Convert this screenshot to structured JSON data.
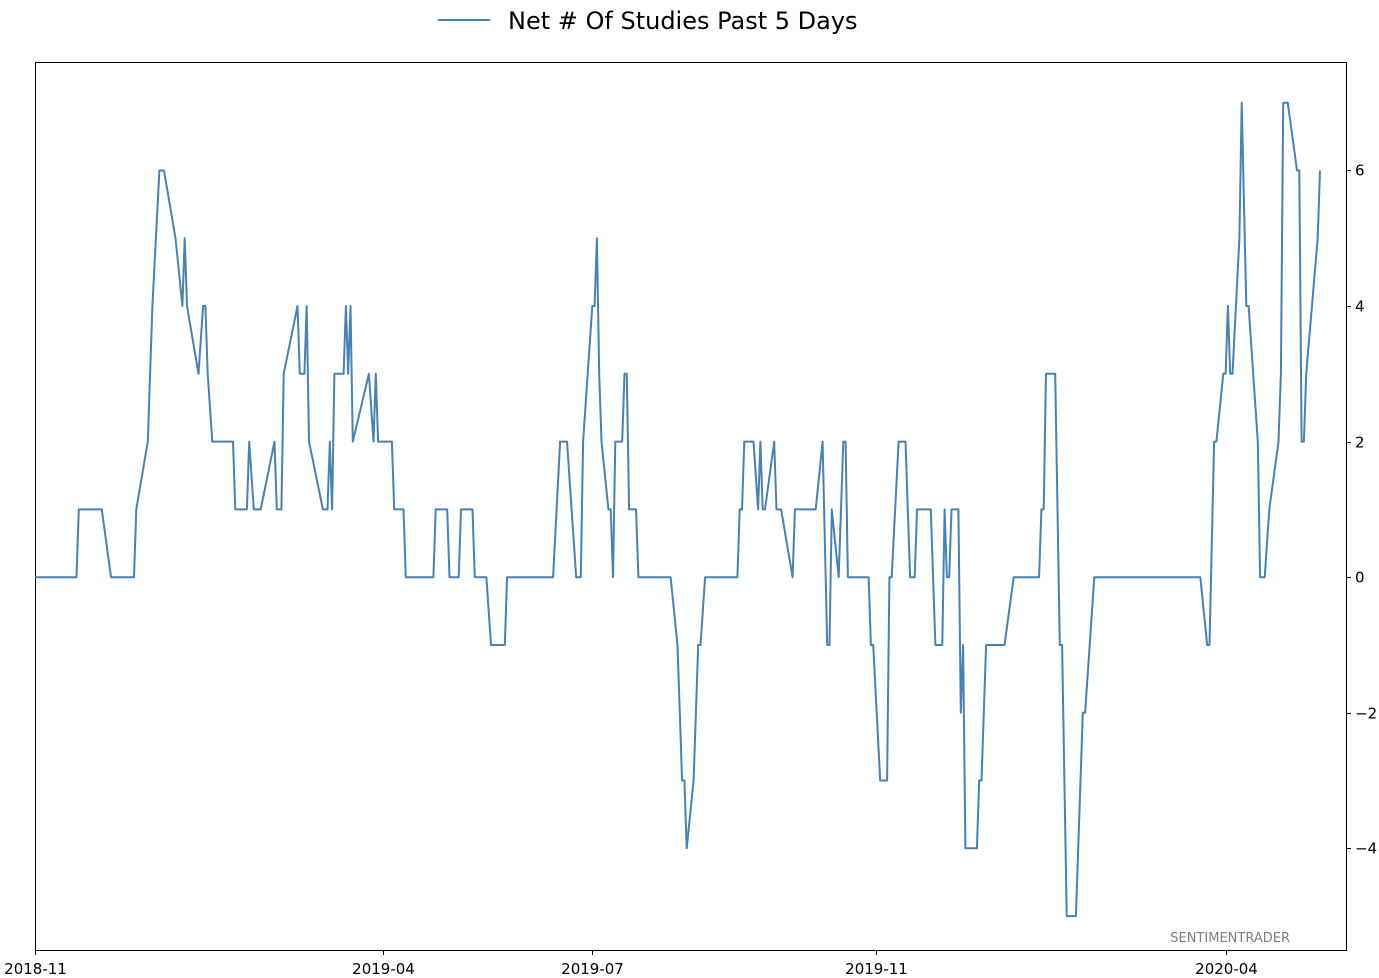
{
  "chart_data": {
    "type": "line",
    "title": "",
    "xlabel": "",
    "ylabel": "",
    "legend": {
      "placement": "top-center",
      "entries": [
        "Net # Of Studies Past 5 Days"
      ]
    },
    "watermark": "SENTIMENTRADER",
    "x_ticks": [
      "2018-11",
      "2019-04",
      "2019-07",
      "2019-11",
      "2020-04"
    ],
    "y_ticks": [
      -4,
      -2,
      0,
      2,
      4,
      6
    ],
    "ylim": [
      -5.5,
      7.6
    ],
    "grid": false,
    "y_axis_side": "right",
    "colors": {
      "series": "#4682b4",
      "axes": "#000000",
      "watermark": "#808080"
    },
    "series": [
      {
        "name": "Net # Of Studies Past 5 Days",
        "points": [
          [
            "2018-11",
            0
          ],
          [
            "2018-11-19",
            0
          ],
          [
            "2018-11-20",
            1
          ],
          [
            "2018-11-30",
            1
          ],
          [
            "2018-12-04",
            0
          ],
          [
            "2018-12-14",
            0
          ],
          [
            "2018-12-15",
            1
          ],
          [
            "2018-12-20",
            2
          ],
          [
            "2018-12-22",
            4
          ],
          [
            "2018-12-25",
            6
          ],
          [
            "2018-12-27",
            6
          ],
          [
            "2019-01-01",
            5
          ],
          [
            "2019-01-04",
            4
          ],
          [
            "2019-01-05",
            5
          ],
          [
            "2019-01-06",
            4
          ],
          [
            "2019-01-11",
            3
          ],
          [
            "2019-01-13",
            4
          ],
          [
            "2019-01-14",
            4
          ],
          [
            "2019-01-15",
            3
          ],
          [
            "2019-01-17",
            2
          ],
          [
            "2019-01-26",
            2
          ],
          [
            "2019-01-27",
            1
          ],
          [
            "2019-02-01",
            1
          ],
          [
            "2019-02-02",
            2
          ],
          [
            "2019-02-04",
            1
          ],
          [
            "2019-02-07",
            1
          ],
          [
            "2019-02-13",
            2
          ],
          [
            "2019-02-14",
            1
          ],
          [
            "2019-02-16",
            1
          ],
          [
            "2019-02-17",
            3
          ],
          [
            "2019-02-23",
            4
          ],
          [
            "2019-02-24",
            3
          ],
          [
            "2019-02-26",
            3
          ],
          [
            "2019-02-27",
            4
          ],
          [
            "2019-02-28",
            2
          ],
          [
            "2019-03-06",
            1
          ],
          [
            "2019-03-08",
            1
          ],
          [
            "2019-03-09",
            2
          ],
          [
            "2019-03-10",
            1
          ],
          [
            "2019-03-11",
            3
          ],
          [
            "2019-03-15",
            3
          ],
          [
            "2019-03-16",
            4
          ],
          [
            "2019-03-17",
            3
          ],
          [
            "2019-03-18",
            4
          ],
          [
            "2019-03-19",
            2
          ],
          [
            "2019-03-26",
            3
          ],
          [
            "2019-03-28",
            2
          ],
          [
            "2019-03-29",
            3
          ],
          [
            "2019-03-30",
            2
          ],
          [
            "2019-04-05",
            2
          ],
          [
            "2019-04-06",
            1
          ],
          [
            "2019-04-10",
            1
          ],
          [
            "2019-04-11",
            0
          ],
          [
            "2019-04-23",
            0
          ],
          [
            "2019-04-24",
            1
          ],
          [
            "2019-04-29",
            1
          ],
          [
            "2019-04-30",
            0
          ],
          [
            "2019-05-04",
            0
          ],
          [
            "2019-05-05",
            1
          ],
          [
            "2019-05-10",
            1
          ],
          [
            "2019-05-11",
            0
          ],
          [
            "2019-05-16",
            0
          ],
          [
            "2019-05-18",
            -1
          ],
          [
            "2019-05-24",
            -1
          ],
          [
            "2019-05-25",
            0
          ],
          [
            "2019-06-14",
            0
          ],
          [
            "2019-06-17",
            2
          ],
          [
            "2019-06-20",
            2
          ],
          [
            "2019-06-24",
            0
          ],
          [
            "2019-06-26",
            0
          ],
          [
            "2019-06-27",
            2
          ],
          [
            "2019-06-29",
            3
          ],
          [
            "2019-07-01",
            4
          ],
          [
            "2019-07-02",
            4
          ],
          [
            "2019-07-03",
            5
          ],
          [
            "2019-07-04",
            3
          ],
          [
            "2019-07-05",
            2
          ],
          [
            "2019-07-08",
            1
          ],
          [
            "2019-07-09",
            1
          ],
          [
            "2019-07-10",
            0
          ],
          [
            "2019-07-11",
            2
          ],
          [
            "2019-07-14",
            2
          ],
          [
            "2019-07-15",
            3
          ],
          [
            "2019-07-16",
            3
          ],
          [
            "2019-07-17",
            1
          ],
          [
            "2019-07-20",
            1
          ],
          [
            "2019-07-21",
            0
          ],
          [
            "2019-08-04",
            0
          ],
          [
            "2019-08-07",
            -1
          ],
          [
            "2019-08-09",
            -3
          ],
          [
            "2019-08-10",
            -3
          ],
          [
            "2019-08-11",
            -4
          ],
          [
            "2019-08-14",
            -3
          ],
          [
            "2019-08-16",
            -1
          ],
          [
            "2019-08-17",
            -1
          ],
          [
            "2019-08-19",
            0
          ],
          [
            "2019-09-02",
            0
          ],
          [
            "2019-09-03",
            1
          ],
          [
            "2019-09-04",
            1
          ],
          [
            "2019-09-05",
            2
          ],
          [
            "2019-09-09",
            2
          ],
          [
            "2019-09-11",
            1
          ],
          [
            "2019-09-12",
            2
          ],
          [
            "2019-09-13",
            1
          ],
          [
            "2019-09-14",
            1
          ],
          [
            "2019-09-18",
            2
          ],
          [
            "2019-09-19",
            1
          ],
          [
            "2019-09-21",
            1
          ],
          [
            "2019-09-26",
            0
          ],
          [
            "2019-09-27",
            1
          ],
          [
            "2019-10-06",
            1
          ],
          [
            "2019-10-09",
            2
          ],
          [
            "2019-10-11",
            -1
          ],
          [
            "2019-10-12",
            -1
          ],
          [
            "2019-10-13",
            1
          ],
          [
            "2019-10-16",
            0
          ],
          [
            "2019-10-18",
            2
          ],
          [
            "2019-10-19",
            2
          ],
          [
            "2019-10-20",
            0
          ],
          [
            "2019-10-29",
            0
          ],
          [
            "2019-10-30",
            -1
          ],
          [
            "2019-10-31",
            -1
          ],
          [
            "2019-11-03",
            -3
          ],
          [
            "2019-11-06",
            -3
          ],
          [
            "2019-11-07",
            0
          ],
          [
            "2019-11-08",
            0
          ],
          [
            "2019-11-11",
            2
          ],
          [
            "2019-11-14",
            2
          ],
          [
            "2019-11-16",
            0
          ],
          [
            "2019-11-18",
            0
          ],
          [
            "2019-11-19",
            1
          ],
          [
            "2019-11-25",
            1
          ],
          [
            "2019-11-27",
            -1
          ],
          [
            "2019-11-30",
            -1
          ],
          [
            "2019-12-01",
            1
          ],
          [
            "2019-12-02",
            0
          ],
          [
            "2019-12-03",
            0
          ],
          [
            "2019-12-04",
            1
          ],
          [
            "2019-12-07",
            1
          ],
          [
            "2019-12-08",
            -2
          ],
          [
            "2019-12-09",
            -1
          ],
          [
            "2019-12-10",
            -4
          ],
          [
            "2019-12-15",
            -4
          ],
          [
            "2019-12-16",
            -3
          ],
          [
            "2019-12-17",
            -3
          ],
          [
            "2019-12-19",
            -1
          ],
          [
            "2019-12-27",
            -1
          ],
          [
            "2019-12-31",
            0
          ],
          [
            "2020-01-11",
            0
          ],
          [
            "2020-01-12",
            1
          ],
          [
            "2020-01-13",
            1
          ],
          [
            "2020-01-14",
            3
          ],
          [
            "2020-01-18",
            3
          ],
          [
            "2020-01-20",
            -1
          ],
          [
            "2020-01-21",
            -1
          ],
          [
            "2020-01-23",
            -5
          ],
          [
            "2020-01-27",
            -5
          ],
          [
            "2020-01-29",
            -3
          ],
          [
            "2020-01-30",
            -2
          ],
          [
            "2020-01-31",
            -2
          ],
          [
            "2020-02-04",
            0
          ],
          [
            "2020-03-21",
            0
          ],
          [
            "2020-03-24",
            -1
          ],
          [
            "2020-03-25",
            -1
          ],
          [
            "2020-03-27",
            2
          ],
          [
            "2020-03-28",
            2
          ],
          [
            "2020-03-31",
            3
          ],
          [
            "2020-04-01",
            3
          ],
          [
            "2020-04-02",
            4
          ],
          [
            "2020-04-03",
            3
          ],
          [
            "2020-04-04",
            3
          ],
          [
            "2020-04-07",
            5
          ],
          [
            "2020-04-08",
            7
          ],
          [
            "2020-04-10",
            4
          ],
          [
            "2020-04-11",
            4
          ],
          [
            "2020-04-15",
            2
          ],
          [
            "2020-04-16",
            0
          ],
          [
            "2020-04-18",
            0
          ],
          [
            "2020-04-20",
            1
          ],
          [
            "2020-04-24",
            2
          ],
          [
            "2020-04-25",
            3
          ],
          [
            "2020-04-26",
            7
          ],
          [
            "2020-04-28",
            7
          ],
          [
            "2020-05-02",
            6
          ],
          [
            "2020-05-03",
            6
          ],
          [
            "2020-05-04",
            2
          ],
          [
            "2020-05-05",
            2
          ],
          [
            "2020-05-06",
            3
          ],
          [
            "2020-05-11",
            5
          ],
          [
            "2020-05-12",
            6
          ]
        ]
      }
    ]
  }
}
